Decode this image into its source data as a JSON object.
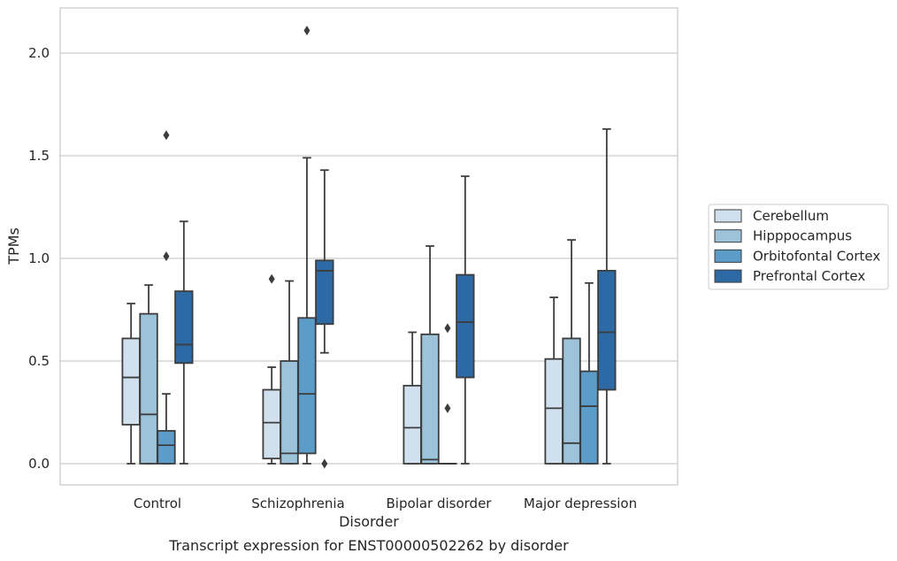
{
  "chart_data": {
    "type": "box",
    "xlabel": "Disorder",
    "ylabel": "TPMs",
    "caption": "Transcript expression for ENST00000502262 by disorder",
    "ylim": [
      -0.1,
      2.22
    ],
    "yticks": [
      "0.0",
      "0.5",
      "1.0",
      "1.5",
      "2.0"
    ],
    "grid": true,
    "legend_position": "right",
    "categories": [
      "Control",
      "Schizophrenia",
      "Bipolar disorder",
      "Major depression"
    ],
    "series": [
      {
        "name": "Cerebellum",
        "color": "#d0e0ef",
        "boxes": [
          {
            "whislo": 0.0,
            "q1": 0.19,
            "med": 0.42,
            "q3": 0.61,
            "whishi": 0.78,
            "fliers": []
          },
          {
            "whislo": 0.0,
            "q1": 0.025,
            "med": 0.2,
            "q3": 0.36,
            "whishi": 0.47,
            "fliers": [
              0.9
            ]
          },
          {
            "whislo": 0.0,
            "q1": 0.0,
            "med": 0.175,
            "q3": 0.38,
            "whishi": 0.64,
            "fliers": []
          },
          {
            "whislo": 0.0,
            "q1": 0.0,
            "med": 0.27,
            "q3": 0.51,
            "whishi": 0.81,
            "fliers": []
          }
        ]
      },
      {
        "name": "Hipppocampus",
        "color": "#9cc3da",
        "boxes": [
          {
            "whislo": 0.0,
            "q1": 0.0,
            "med": 0.24,
            "q3": 0.73,
            "whishi": 0.87,
            "fliers": []
          },
          {
            "whislo": 0.0,
            "q1": 0.0,
            "med": 0.05,
            "q3": 0.5,
            "whishi": 0.89,
            "fliers": []
          },
          {
            "whislo": 0.0,
            "q1": 0.0,
            "med": 0.02,
            "q3": 0.63,
            "whishi": 1.06,
            "fliers": []
          },
          {
            "whislo": 0.0,
            "q1": 0.0,
            "med": 0.1,
            "q3": 0.61,
            "whishi": 1.09,
            "fliers": []
          }
        ]
      },
      {
        "name": "Orbitofontal Cortex",
        "color": "#5b9cc8",
        "boxes": [
          {
            "whislo": 0.0,
            "q1": 0.0,
            "med": 0.09,
            "q3": 0.16,
            "whishi": 0.34,
            "fliers": [
              1.01,
              1.6
            ]
          },
          {
            "whislo": 0.0,
            "q1": 0.05,
            "med": 0.34,
            "q3": 0.71,
            "whishi": 1.49,
            "fliers": [
              2.11
            ]
          },
          {
            "whislo": 0.0,
            "q1": 0.0,
            "med": 0.0,
            "q3": 0.0,
            "whishi": 0.0,
            "fliers": [
              0.27,
              0.66
            ]
          },
          {
            "whislo": 0.0,
            "q1": 0.0,
            "med": 0.28,
            "q3": 0.45,
            "whishi": 0.88,
            "fliers": []
          }
        ]
      },
      {
        "name": "Prefrontal Cortex",
        "color": "#2c69a5",
        "boxes": [
          {
            "whislo": 0.0,
            "q1": 0.49,
            "med": 0.58,
            "q3": 0.84,
            "whishi": 1.18,
            "fliers": []
          },
          {
            "whislo": 0.54,
            "q1": 0.68,
            "med": 0.94,
            "q3": 0.99,
            "whishi": 1.43,
            "fliers": [
              0.0
            ]
          },
          {
            "whislo": 0.0,
            "q1": 0.42,
            "med": 0.69,
            "q3": 0.92,
            "whishi": 1.4,
            "fliers": []
          },
          {
            "whislo": 0.0,
            "q1": 0.36,
            "med": 0.64,
            "q3": 0.94,
            "whishi": 1.63,
            "fliers": []
          }
        ]
      }
    ]
  }
}
